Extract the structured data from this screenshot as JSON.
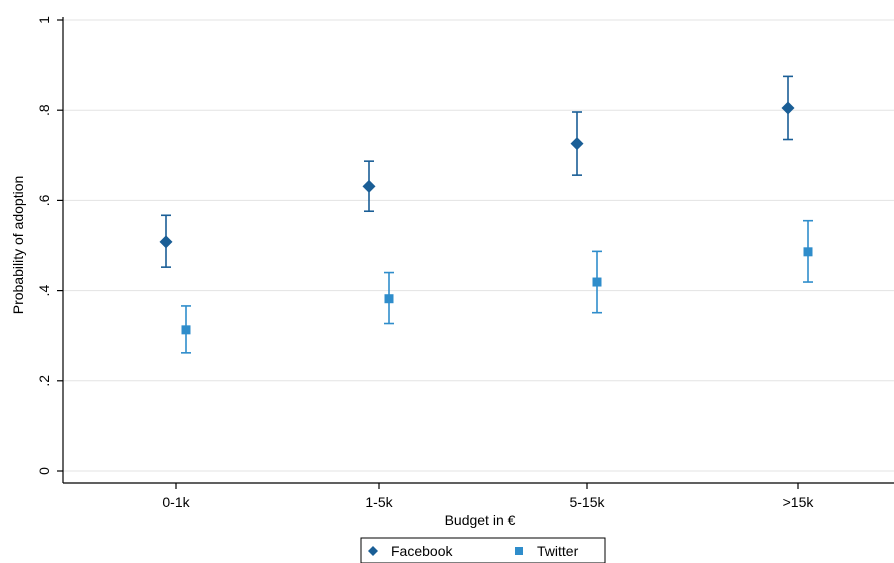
{
  "chart_data": {
    "type": "scatter",
    "title": "",
    "xlabel": "Budget in €",
    "ylabel": "Probability of adoption",
    "categories": [
      "0-1k",
      "1-5k",
      "5-15k",
      ">15k"
    ],
    "ylim": [
      0,
      1
    ],
    "yticks": [
      0,
      0.2,
      0.4,
      0.6,
      0.8,
      1
    ],
    "ytick_labels": [
      "0",
      ".2",
      ".4",
      ".6",
      ".8",
      "1"
    ],
    "grid": true,
    "legend_position": "bottom",
    "series": [
      {
        "name": "Facebook",
        "marker": "diamond",
        "color": "#1a5e96",
        "values": [
          0.508,
          0.631,
          0.726,
          0.805
        ],
        "ci_low": [
          0.452,
          0.576,
          0.656,
          0.735
        ],
        "ci_high": [
          0.567,
          0.687,
          0.796,
          0.875
        ]
      },
      {
        "name": "Twitter",
        "marker": "square",
        "color": "#2f8dcb",
        "values": [
          0.313,
          0.382,
          0.419,
          0.486
        ],
        "ci_low": [
          0.262,
          0.327,
          0.351,
          0.419
        ],
        "ci_high": [
          0.366,
          0.44,
          0.487,
          0.555
        ]
      }
    ]
  }
}
